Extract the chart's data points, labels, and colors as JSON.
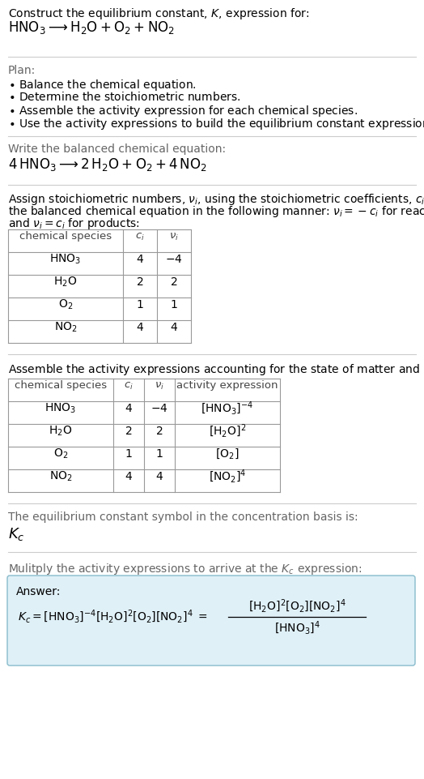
{
  "bg_color": "#ffffff",
  "text_color": "#000000",
  "gray_text": "#555555",
  "answer_box_color": "#dff0f7",
  "answer_box_border": "#88bbcc",
  "separator_color": "#cccccc",
  "fig_width": 5.24,
  "fig_height": 9.61,
  "dpi": 100
}
